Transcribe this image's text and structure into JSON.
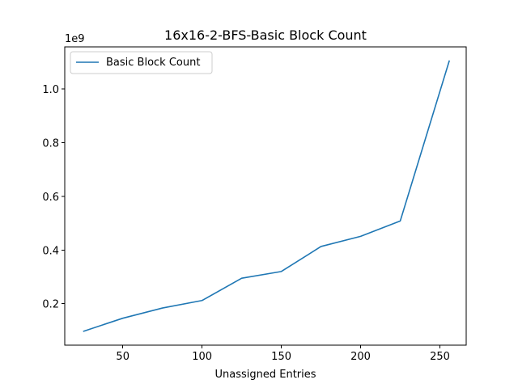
{
  "chart_data": {
    "type": "line",
    "title": "16x16-2-BFS-Basic Block Count",
    "xlabel": "Unassigned Entries",
    "ylabel": "",
    "offset_label": "1e9",
    "xlim": [
      13.4,
      266.6
    ],
    "ylim": [
      0.0457,
      1.1563
    ],
    "x_ticks": [
      50,
      100,
      150,
      200,
      250
    ],
    "x_tick_labels": [
      "50",
      "100",
      "150",
      "200",
      "250"
    ],
    "y_ticks": [
      0.2,
      0.4,
      0.6,
      0.8,
      1.0
    ],
    "y_tick_labels": [
      "0.2",
      "0.4",
      "0.6",
      "0.8",
      "1.0"
    ],
    "grid": false,
    "legend_position": "top-left",
    "series": [
      {
        "name": "Basic Block Count",
        "color": "#1f77b4",
        "x": [
          25,
          50,
          75,
          100,
          125,
          150,
          175,
          200,
          225,
          256
        ],
        "y": [
          0.097,
          0.146,
          0.184,
          0.212,
          0.295,
          0.32,
          0.413,
          0.451,
          0.508,
          1.106
        ]
      }
    ]
  }
}
